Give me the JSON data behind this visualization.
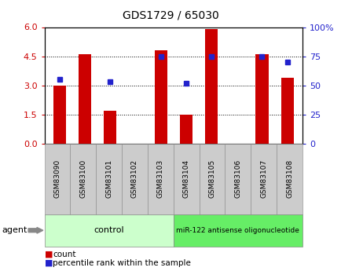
{
  "title": "GDS1729 / 65030",
  "samples": [
    "GSM83090",
    "GSM83100",
    "GSM83101",
    "GSM83102",
    "GSM83103",
    "GSM83104",
    "GSM83105",
    "GSM83106",
    "GSM83107",
    "GSM83108"
  ],
  "counts": [
    3.0,
    4.6,
    1.7,
    0.0,
    4.8,
    1.5,
    5.9,
    0.0,
    4.6,
    3.4
  ],
  "percentiles": [
    55,
    null,
    53,
    null,
    75,
    52,
    75,
    null,
    75,
    70
  ],
  "bar_color": "#cc0000",
  "dot_color": "#2222cc",
  "left_ylim": [
    0,
    6
  ],
  "right_ylim": [
    0,
    100
  ],
  "left_yticks": [
    0,
    1.5,
    3.0,
    4.5,
    6.0
  ],
  "right_yticks": [
    0,
    25,
    50,
    75,
    100
  ],
  "right_yticklabels": [
    "0",
    "25",
    "50",
    "75",
    "100%"
  ],
  "control_label": "control",
  "treatment_label": "miR-122 antisense oligonucleotide",
  "agent_label": "agent",
  "control_bg": "#ccffcc",
  "treatment_bg": "#66ee66",
  "sample_box_bg": "#cccccc",
  "legend_count_label": "count",
  "legend_pct_label": "percentile rank within the sample",
  "grid_color": "#000000",
  "background_color": "#ffffff",
  "bar_width": 0.5,
  "n_control": 5,
  "n_treatment": 5
}
